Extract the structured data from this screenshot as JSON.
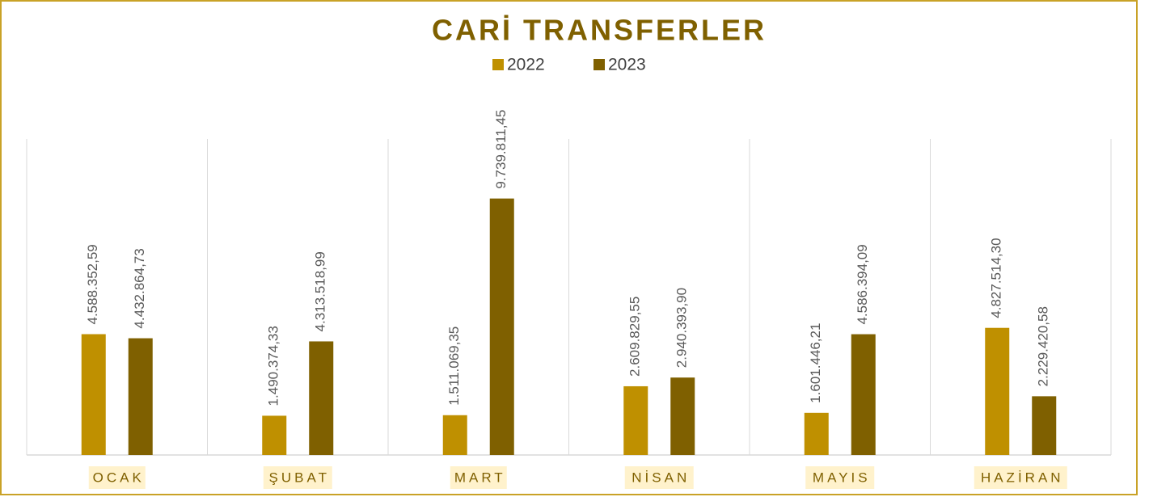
{
  "chart_data": {
    "type": "bar",
    "title": "CARİ TRANSFERLER",
    "categories": [
      "OCAK",
      "ŞUBAT",
      "MART",
      "NİSAN",
      "MAYIS",
      "HAZİRAN"
    ],
    "series": [
      {
        "name": "2022",
        "color": "#bf9000",
        "values": [
          4588352.59,
          1490374.33,
          1511069.35,
          2609829.55,
          1601446.21,
          4827514.3
        ],
        "value_labels": [
          "4.588.352,59",
          "1.490.374,33",
          "1.511.069,35",
          "2.609.829,55",
          "1.601.446,21",
          "4.827.514,30"
        ]
      },
      {
        "name": "2023",
        "color": "#7f6000",
        "values": [
          4432864.73,
          4313518.99,
          9739811.45,
          2940393.9,
          4586394.09,
          2229420.58
        ],
        "value_labels": [
          "4.432.864,73",
          "4.313.518,99",
          "9.739.811,45",
          "2.940.393,90",
          "4.586.394,09",
          "2.229.420,58"
        ]
      }
    ],
    "ylim": [
      0,
      12000000
    ],
    "legend": "top"
  }
}
